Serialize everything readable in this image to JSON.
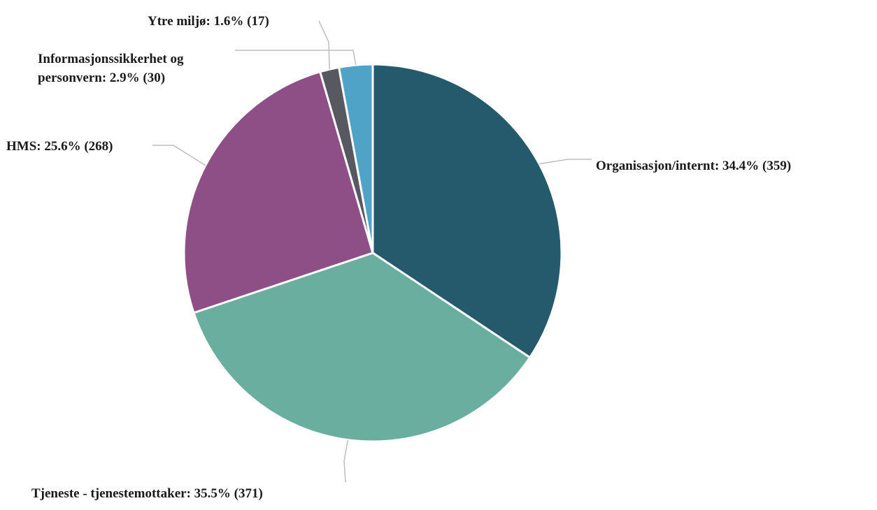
{
  "chart_data": {
    "type": "pie",
    "slices": [
      {
        "name": "Organisasjon/internt",
        "percent": 34.4,
        "count": 359,
        "color": "#245a6b",
        "label": "Organisasjon/internt: 34.4% (359)"
      },
      {
        "name": "Tjeneste - tjenestemottaker",
        "percent": 35.5,
        "count": 371,
        "color": "#6aaea0",
        "label": "Tjeneste - tjenestemottaker: 35.5% (371)"
      },
      {
        "name": "HMS",
        "percent": 25.6,
        "count": 268,
        "color": "#8e4f86",
        "label": "HMS: 25.6% (268)"
      },
      {
        "name": "Ytre miljø",
        "percent": 1.6,
        "count": 17,
        "color": "#585860",
        "label": "Ytre miljø: 1.6% (17)"
      },
      {
        "name": "Informasjonssikkerhet og personvern",
        "percent": 2.9,
        "count": 30,
        "color": "#4ea3c6",
        "label_lines": [
          "Informasjonssikkerhet og",
          "personvern: 2.9% (30)"
        ]
      }
    ]
  }
}
